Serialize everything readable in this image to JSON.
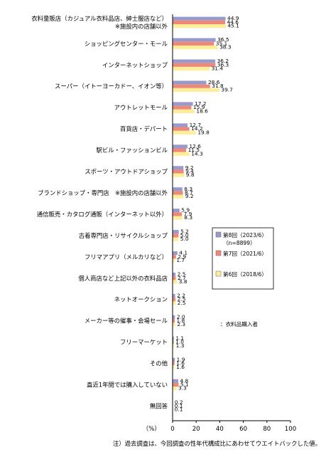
{
  "chart_data": {
    "type": "bar",
    "orientation": "horizontal",
    "categories": [
      [
        "衣料量販店（カジュアル衣料品店、紳士服店など）",
        "※施設内の店舗以外"
      ],
      [
        "ショッピングセンター・モール"
      ],
      [
        "インターネットショップ"
      ],
      [
        "スーパー（イトーヨーカドー、イオン等）"
      ],
      [
        "アウトレットモール"
      ],
      [
        "百貨店・デパート"
      ],
      [
        "駅ビル・ファッションビル"
      ],
      [
        "スポーツ・アウトドアショップ"
      ],
      [
        "ブランドショップ・専門店　※施設内の店舗以外"
      ],
      [
        "通信販売・カタログ通販（インターネット以外）"
      ],
      [
        "古着専門店・リサイクルショップ"
      ],
      [
        "フリマアプリ（メルカリなど）"
      ],
      [
        "個人商店など上記以外の衣料品店"
      ],
      [
        "ネットオークション"
      ],
      [
        "メーカー等の催事・会場セール"
      ],
      [
        "フリーマーケット"
      ],
      [
        "その他"
      ],
      [
        "直近1年間では購入していない"
      ],
      [
        "無回答"
      ]
    ],
    "series": [
      {
        "name": "第8回（2023/6）",
        "color": "#9999cc",
        "values": [
          44.9,
          36.5,
          36.2,
          28.6,
          17.2,
          12.7,
          12.6,
          9.2,
          8.3,
          5.9,
          5.2,
          4.1,
          2.5,
          2.2,
          2.0,
          1.1,
          1.9,
          4.8,
          0.2
        ]
      },
      {
        "name": "第7回（2021/6）",
        "color": "#ee8877",
        "values": [
          44.6,
          35.1,
          36.3,
          31.8,
          15.9,
          14.2,
          11.5,
          9.4,
          8.7,
          7.9,
          5.0,
          2.9,
          2.7,
          2.5,
          1.8,
          1.0,
          1.6,
          5.1,
          0.1
        ]
      },
      {
        "name": "第6回（2018/6）",
        "color": "#ffee99",
        "values": [
          45.1,
          38.3,
          31.4,
          39.7,
          18.6,
          19.8,
          14.3,
          9.8,
          9.2,
          8.3,
          5.0,
          1.7,
          3.8,
          2.5,
          2.3,
          1.3,
          1.6,
          3.3,
          0.1
        ]
      }
    ],
    "x_ticks": [
      "0",
      "20",
      "40",
      "60",
      "80",
      "100"
    ],
    "xlim": [
      0,
      100
    ],
    "unit_label": "（%）",
    "legend_placement": "inside-right",
    "legend_sample_note": "（n=8899）",
    "annotation": "：衣料品購入者",
    "note": "注）過去調査は、今回調査の性年代構成比にあわせてウエイトバックした値。",
    "grid": false
  }
}
